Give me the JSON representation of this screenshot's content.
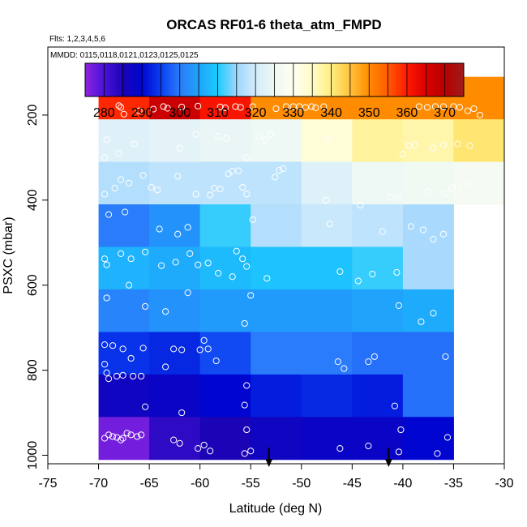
{
  "chart_data": {
    "type": "heatmap",
    "title": "ORCAS RF01-6 theta_atm_FMPD",
    "subtitle_flights": "Flts: 1,2,3,4,5,6",
    "subtitle_dates": "MMDD: 0115,0118,0121,0123,0125,0125",
    "xlabel": "Latitude (deg N)",
    "ylabel": "PSXC (mbar)",
    "xlim": [
      -75,
      -30
    ],
    "ylim": [
      1020,
      40
    ],
    "xticks": [
      -75,
      -70,
      -65,
      -60,
      -55,
      -50,
      -45,
      -40,
      -35,
      -30
    ],
    "xtick_labels": [
      "-75",
      "-70",
      "-65",
      "-60",
      "-55",
      "-50",
      "-45",
      "-40",
      "-35",
      "-30"
    ],
    "yticks": [
      200,
      400,
      600,
      800,
      1000
    ],
    "ytick_labels": [
      "200",
      "400",
      "600",
      "800",
      "1000"
    ],
    "colorbar": {
      "min": 275,
      "max": 375,
      "ticks": [
        280,
        290,
        300,
        310,
        320,
        330,
        340,
        350,
        360,
        370
      ],
      "tick_labels": [
        "280",
        "290",
        "300",
        "310",
        "320",
        "330",
        "340",
        "350",
        "360",
        "370"
      ],
      "stops": [
        [
          275,
          "#8e24e0"
        ],
        [
          280,
          "#4b12d8"
        ],
        [
          285,
          "#1a04b6"
        ],
        [
          290,
          "#0006d0"
        ],
        [
          295,
          "#0b3ef0"
        ],
        [
          300,
          "#2a7cfb"
        ],
        [
          305,
          "#1fa3fb"
        ],
        [
          310,
          "#1ccbfd"
        ],
        [
          315,
          "#9ed6fd"
        ],
        [
          320,
          "#d4ecfb"
        ],
        [
          325,
          "#eef8f4"
        ],
        [
          330,
          "#fffff0"
        ],
        [
          335,
          "#fffcc8"
        ],
        [
          340,
          "#ffee80"
        ],
        [
          345,
          "#ffc23c"
        ],
        [
          350,
          "#ff8c00"
        ],
        [
          355,
          "#ff5a00"
        ],
        [
          360,
          "#ff1a00"
        ],
        [
          365,
          "#d80000"
        ],
        [
          370,
          "#b80000"
        ],
        [
          375,
          "#9e1c1c"
        ]
      ]
    },
    "lat_edges": [
      -70,
      -65,
      -60,
      -55,
      -50,
      -45,
      -40,
      -35,
      -30
    ],
    "pressure_edges": [
      110,
      210,
      310,
      410,
      510,
      610,
      710,
      810,
      910,
      1010
    ],
    "cells": [
      [
        359,
        367,
        361,
        350,
        350,
        350,
        350,
        350
      ],
      [
        322,
        323,
        324,
        325,
        333,
        338,
        337,
        341
      ],
      [
        317,
        318,
        318,
        318,
        322,
        325,
        326,
        327
      ],
      [
        300,
        303,
        311,
        317,
        319,
        318,
        316,
        null
      ],
      [
        307,
        306,
        308,
        309,
        309,
        311,
        316,
        null
      ],
      [
        301,
        303,
        304,
        304,
        304,
        305,
        306,
        null
      ],
      [
        294,
        293,
        296,
        300,
        300,
        299,
        299,
        null
      ],
      [
        287,
        288,
        290,
        292,
        293,
        292,
        299,
        null
      ],
      [
        277,
        283,
        285,
        287,
        288,
        288,
        290,
        null
      ]
    ],
    "points": [
      [
        -67.8,
        182
      ],
      [
        -67.5,
        198
      ],
      [
        -68.0,
        178
      ],
      [
        -66.0,
        190
      ],
      [
        -64.6,
        186
      ],
      [
        -63.6,
        180
      ],
      [
        -63.2,
        184
      ],
      [
        -61.8,
        181
      ],
      [
        -60.2,
        179
      ],
      [
        -58.0,
        181
      ],
      [
        -57.5,
        183
      ],
      [
        -56.5,
        180
      ],
      [
        -56.0,
        182
      ],
      [
        -54.8,
        180
      ],
      [
        -52.5,
        185
      ],
      [
        -51.5,
        180
      ],
      [
        -50.8,
        180
      ],
      [
        -50.2,
        180
      ],
      [
        -49.6,
        182
      ],
      [
        -49.0,
        180
      ],
      [
        -48.6,
        183
      ],
      [
        -47.8,
        180
      ],
      [
        -38.4,
        180
      ],
      [
        -37.6,
        182
      ],
      [
        -36.8,
        180
      ],
      [
        -36.0,
        180
      ],
      [
        -35.0,
        180
      ],
      [
        -34.4,
        182
      ],
      [
        -33.6,
        190
      ],
      [
        -33.0,
        185
      ],
      [
        -32.4,
        200
      ],
      [
        -69.2,
        258
      ],
      [
        -68.0,
        290
      ],
      [
        -69.4,
        300
      ],
      [
        -66.5,
        268
      ],
      [
        -62.0,
        278
      ],
      [
        -60.4,
        245
      ],
      [
        -58.2,
        250
      ],
      [
        -57.4,
        255
      ],
      [
        -55.4,
        300
      ],
      [
        -54.2,
        250
      ],
      [
        -53.6,
        258
      ],
      [
        -53.0,
        246
      ],
      [
        -47.4,
        256
      ],
      [
        -40.0,
        292
      ],
      [
        -39.4,
        272
      ],
      [
        -38.8,
        270
      ],
      [
        -37.0,
        278
      ],
      [
        -36.0,
        270
      ],
      [
        -34.6,
        268
      ],
      [
        -33.4,
        272
      ],
      [
        -69.4,
        386
      ],
      [
        -68.4,
        372
      ],
      [
        -67.8,
        352
      ],
      [
        -67.0,
        360
      ],
      [
        -65.6,
        342
      ],
      [
        -64.8,
        370
      ],
      [
        -64.2,
        376
      ],
      [
        -62.2,
        344
      ],
      [
        -60.4,
        386
      ],
      [
        -59.0,
        388
      ],
      [
        -58.6,
        372
      ],
      [
        -58.0,
        374
      ],
      [
        -57.2,
        338
      ],
      [
        -56.8,
        332
      ],
      [
        -56.2,
        331
      ],
      [
        -55.8,
        370
      ],
      [
        -55.4,
        386
      ],
      [
        -52.6,
        346
      ],
      [
        -52.2,
        330
      ],
      [
        -51.8,
        326
      ],
      [
        -47.6,
        400
      ],
      [
        -44.2,
        412
      ],
      [
        -41.2,
        392
      ],
      [
        -40.4,
        394
      ],
      [
        -37.6,
        380
      ],
      [
        -35.8,
        384
      ],
      [
        -35.2,
        372
      ],
      [
        -34.6,
        368
      ],
      [
        -33.4,
        362
      ],
      [
        -69.0,
        434
      ],
      [
        -67.4,
        428
      ],
      [
        -64.0,
        468
      ],
      [
        -62.2,
        480
      ],
      [
        -61.2,
        464
      ],
      [
        -54.8,
        446
      ],
      [
        -47.2,
        456
      ],
      [
        -42.0,
        474
      ],
      [
        -39.2,
        462
      ],
      [
        -38.0,
        470
      ],
      [
        -37.0,
        492
      ],
      [
        -36.0,
        480
      ],
      [
        -69.4,
        538
      ],
      [
        -69.2,
        552
      ],
      [
        -67.8,
        526
      ],
      [
        -66.8,
        538
      ],
      [
        -65.4,
        522
      ],
      [
        -63.8,
        554
      ],
      [
        -62.4,
        546
      ],
      [
        -61.0,
        526
      ],
      [
        -60.2,
        552
      ],
      [
        -59.2,
        548
      ],
      [
        -58.2,
        572
      ],
      [
        -56.4,
        520
      ],
      [
        -55.8,
        538
      ],
      [
        -55.4,
        556
      ],
      [
        -53.4,
        584
      ],
      [
        -46.2,
        568
      ],
      [
        -44.4,
        590
      ],
      [
        -43.0,
        574
      ],
      [
        -40.6,
        570
      ],
      [
        -69.2,
        630
      ],
      [
        -67.0,
        600
      ],
      [
        -65.4,
        650
      ],
      [
        -63.4,
        662
      ],
      [
        -61.2,
        618
      ],
      [
        -55.0,
        624
      ],
      [
        -55.6,
        690
      ],
      [
        -40.4,
        648
      ],
      [
        -38.2,
        686
      ],
      [
        -37.0,
        666
      ],
      [
        -56.8,
        580
      ],
      [
        -69.4,
        740
      ],
      [
        -68.6,
        742
      ],
      [
        -67.6,
        750
      ],
      [
        -66.8,
        772
      ],
      [
        -65.6,
        748
      ],
      [
        -62.6,
        750
      ],
      [
        -61.8,
        752
      ],
      [
        -60.0,
        752
      ],
      [
        -59.6,
        730
      ],
      [
        -59.2,
        750
      ],
      [
        -58.4,
        778
      ],
      [
        -63.4,
        792
      ],
      [
        -69.4,
        786
      ],
      [
        -69.2,
        806
      ],
      [
        -69.0,
        820
      ],
      [
        -68.2,
        814
      ],
      [
        -67.6,
        812
      ],
      [
        -66.6,
        814
      ],
      [
        -65.8,
        814
      ],
      [
        -46.4,
        780
      ],
      [
        -45.8,
        796
      ],
      [
        -43.4,
        780
      ],
      [
        -42.8,
        768
      ],
      [
        -35.8,
        768
      ],
      [
        -55.4,
        836
      ],
      [
        -61.8,
        900
      ],
      [
        -65.4,
        886
      ],
      [
        -55.6,
        882
      ],
      [
        -40.8,
        884
      ],
      [
        -69.4,
        960
      ],
      [
        -69.0,
        952
      ],
      [
        -68.6,
        956
      ],
      [
        -68.2,
        958
      ],
      [
        -67.8,
        964
      ],
      [
        -67.6,
        960
      ],
      [
        -67.2,
        948
      ],
      [
        -66.8,
        952
      ],
      [
        -66.2,
        956
      ],
      [
        -65.8,
        952
      ],
      [
        -62.6,
        964
      ],
      [
        -62.0,
        972
      ],
      [
        -60.2,
        984
      ],
      [
        -59.6,
        976
      ],
      [
        -59.0,
        990
      ],
      [
        -55.6,
        996
      ],
      [
        -55.0,
        990
      ],
      [
        -55.4,
        940
      ],
      [
        -46.2,
        984
      ],
      [
        -43.4,
        978
      ],
      [
        -40.4,
        992
      ],
      [
        -40.2,
        940
      ],
      [
        -36.6,
        996
      ],
      [
        -35.6,
        958
      ]
    ],
    "arrows": [
      -53.2,
      -41.4
    ]
  }
}
